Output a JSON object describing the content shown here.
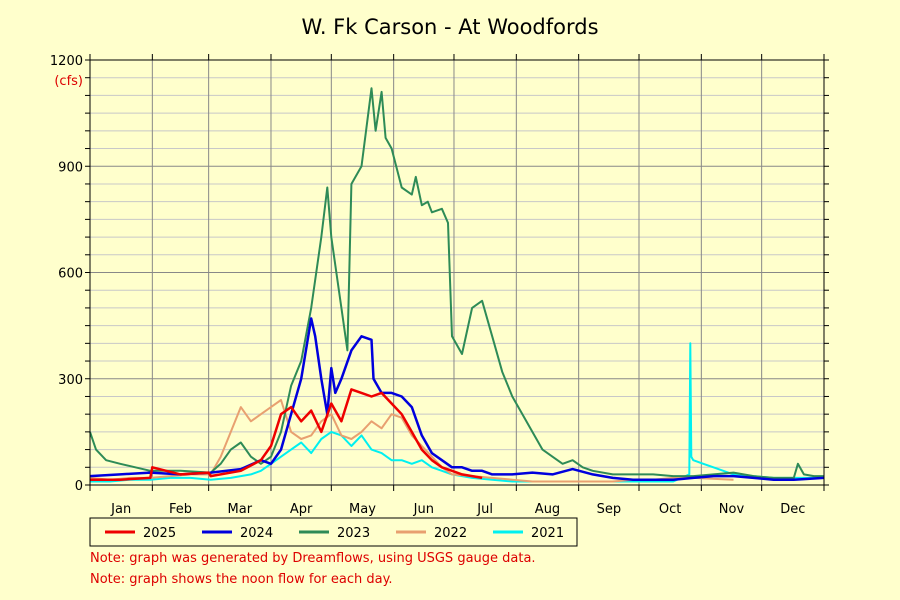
{
  "chart_data": {
    "type": "line",
    "title": "W. Fk Carson - At Woodfords",
    "y_unit_label": "(cfs)",
    "ylim": [
      0,
      1200
    ],
    "y_ticks": [
      0,
      300,
      600,
      900,
      1200
    ],
    "x_months": [
      "Jan",
      "Feb",
      "Mar",
      "Apr",
      "May",
      "Jun",
      "Jul",
      "Aug",
      "Sep",
      "Oct",
      "Nov",
      "Dec"
    ],
    "xlim_day_of_year": [
      0,
      365
    ],
    "grid": true,
    "legend_position": "bottom",
    "series": [
      {
        "name": "2025",
        "color": "#ee0000",
        "width": 2.5,
        "x": [
          0,
          15,
          30,
          31,
          45,
          59,
          60,
          75,
          85,
          90,
          95,
          100,
          105,
          110,
          115,
          120,
          125,
          130,
          135,
          140,
          145,
          150,
          155,
          160,
          165,
          170,
          175,
          180,
          185,
          190,
          195
        ],
        "y": [
          15,
          15,
          20,
          50,
          30,
          35,
          25,
          40,
          70,
          110,
          200,
          220,
          180,
          210,
          150,
          230,
          180,
          270,
          260,
          250,
          260,
          230,
          200,
          150,
          100,
          70,
          50,
          40,
          30,
          25,
          20
        ]
      },
      {
        "name": "2024",
        "color": "#0000dd",
        "width": 2.5,
        "x": [
          0,
          15,
          30,
          45,
          60,
          75,
          85,
          90,
          95,
          100,
          105,
          110,
          112,
          115,
          118,
          120,
          122,
          125,
          130,
          135,
          140,
          141,
          145,
          150,
          155,
          160,
          165,
          170,
          175,
          180,
          185,
          190,
          195,
          200,
          210,
          220,
          230,
          240,
          250,
          260,
          270,
          280,
          290,
          300,
          310,
          320,
          330,
          340,
          350,
          365
        ],
        "y": [
          25,
          30,
          35,
          30,
          35,
          45,
          70,
          60,
          100,
          200,
          300,
          470,
          420,
          300,
          200,
          330,
          260,
          300,
          380,
          420,
          410,
          300,
          260,
          260,
          250,
          220,
          140,
          90,
          70,
          50,
          50,
          40,
          40,
          30,
          30,
          35,
          30,
          45,
          30,
          20,
          15,
          15,
          15,
          20,
          25,
          25,
          20,
          15,
          15,
          20
        ]
      },
      {
        "name": "2023",
        "color": "#2e8b57",
        "width": 2,
        "x": [
          0,
          3,
          8,
          15,
          30,
          45,
          60,
          65,
          70,
          75,
          80,
          85,
          90,
          95,
          100,
          105,
          110,
          115,
          118,
          120,
          125,
          128,
          130,
          135,
          140,
          142,
          145,
          147,
          150,
          155,
          160,
          162,
          165,
          168,
          170,
          175,
          178,
          180,
          185,
          190,
          195,
          200,
          205,
          210,
          215,
          220,
          225,
          230,
          235,
          240,
          245,
          250,
          260,
          270,
          280,
          290,
          300,
          310,
          320,
          330,
          340,
          350,
          352,
          355,
          360,
          365
        ],
        "y": [
          150,
          100,
          70,
          60,
          40,
          40,
          35,
          60,
          100,
          120,
          80,
          60,
          80,
          150,
          280,
          350,
          500,
          700,
          840,
          700,
          500,
          380,
          850,
          900,
          1120,
          1000,
          1110,
          980,
          950,
          840,
          820,
          870,
          790,
          800,
          770,
          780,
          740,
          420,
          370,
          500,
          520,
          420,
          320,
          250,
          200,
          150,
          100,
          80,
          60,
          70,
          50,
          40,
          30,
          30,
          30,
          25,
          25,
          30,
          35,
          25,
          20,
          20,
          60,
          30,
          25,
          25
        ]
      },
      {
        "name": "2022",
        "color": "#e8a070",
        "width": 2,
        "x": [
          0,
          10,
          20,
          30,
          40,
          50,
          60,
          65,
          70,
          75,
          80,
          85,
          90,
          95,
          100,
          105,
          110,
          115,
          120,
          125,
          130,
          135,
          140,
          145,
          150,
          155,
          160,
          165,
          170,
          175,
          180,
          190,
          200,
          210,
          220,
          230,
          240,
          250,
          260,
          270,
          280,
          290,
          300,
          320
        ],
        "y": [
          20,
          15,
          20,
          20,
          25,
          30,
          30,
          80,
          150,
          220,
          180,
          200,
          220,
          240,
          150,
          130,
          140,
          180,
          200,
          140,
          130,
          150,
          180,
          160,
          200,
          190,
          140,
          110,
          80,
          50,
          30,
          25,
          20,
          15,
          10,
          10,
          10,
          10,
          10,
          15,
          15,
          20,
          20,
          15
        ]
      },
      {
        "name": "2021",
        "color": "#00f0f0",
        "width": 2,
        "x": [
          0,
          10,
          20,
          30,
          40,
          50,
          60,
          70,
          80,
          85,
          90,
          95,
          100,
          105,
          110,
          115,
          120,
          125,
          130,
          135,
          140,
          145,
          150,
          155,
          160,
          165,
          170,
          175,
          180,
          190,
          200,
          210,
          220,
          230,
          240,
          250,
          260,
          270,
          280,
          290,
          298,
          298.5,
          299,
          300,
          305,
          310,
          320,
          330,
          340,
          350,
          365
        ],
        "y": [
          10,
          10,
          15,
          15,
          20,
          20,
          15,
          20,
          30,
          40,
          60,
          80,
          100,
          120,
          90,
          130,
          150,
          140,
          110,
          140,
          100,
          90,
          70,
          70,
          60,
          70,
          50,
          40,
          30,
          20,
          15,
          10,
          10,
          10,
          10,
          10,
          10,
          10,
          10,
          10,
          30,
          400,
          80,
          70,
          60,
          50,
          30,
          25,
          20,
          20,
          20
        ]
      }
    ]
  },
  "notes": [
    "Note: graph was generated by Dreamflows, using USGS gauge data.",
    "Note: graph shows the noon flow for each day."
  ]
}
